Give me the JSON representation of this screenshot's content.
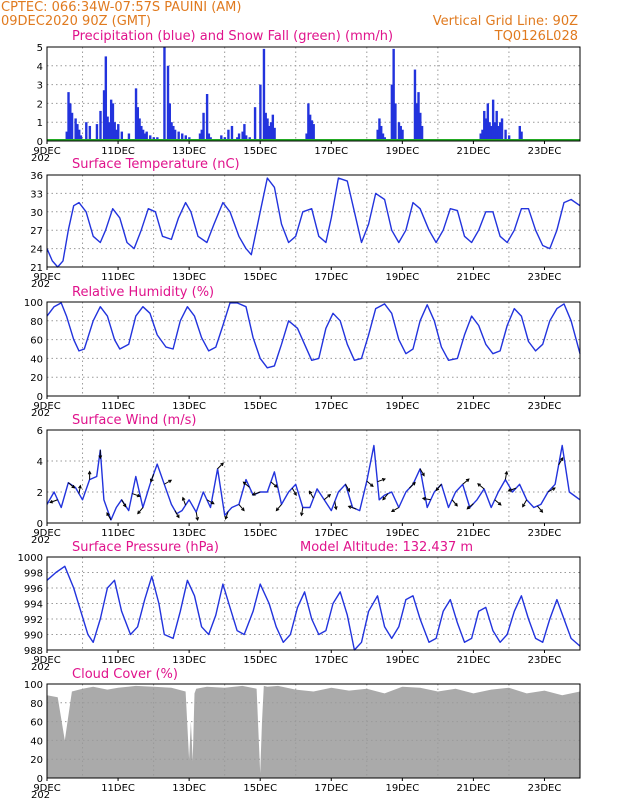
{
  "header": {
    "line1": "CPTEC:   066:34W-07:57S   PAUINI (AM)",
    "line2_left": "09DEC2020 90Z (GMT)",
    "line2_right": "Vertical Grid Line: 90Z",
    "line3_right": "TQ0126L028"
  },
  "x_axis": {
    "labels": [
      "9DEC",
      "11DEC",
      "13DEC",
      "15DEC",
      "17DEC",
      "19DEC",
      "21DEC",
      "23DEC"
    ],
    "year_stub": "202",
    "range_days": [
      0,
      15
    ],
    "grid_days": [
      1,
      3,
      5,
      7,
      9,
      11,
      13
    ],
    "bold_days": [
      2,
      6,
      10
    ]
  },
  "colors": {
    "header": "#e07a1f",
    "title": "#e0138c",
    "line": "#2233dd",
    "precip_bar": "#2233dd",
    "snow_line": "#22aa22",
    "cloud_fill": "#aaaaaa",
    "wind_arrow": "#000000"
  },
  "panels": {
    "precip": {
      "title": "Precipitation (blue) and Snow Fall (green) (mm/h)",
      "ylim": [
        0,
        5
      ],
      "yticks": [
        "0",
        "1",
        "2",
        "3",
        "4",
        "5"
      ]
    },
    "temp": {
      "title": "Surface Temperature (nC)",
      "ylim": [
        21,
        36
      ],
      "yticks": [
        "21",
        "24",
        "27",
        "30",
        "33",
        "36"
      ]
    },
    "rh": {
      "title": "Relative Humidity (%)",
      "ylim": [
        0,
        100
      ],
      "yticks": [
        "0",
        "20",
        "40",
        "60",
        "80",
        "100"
      ]
    },
    "wind": {
      "title": "Surface Wind (m/s)",
      "ylim": [
        0,
        6
      ],
      "yticks": [
        "0",
        "2",
        "4",
        "6"
      ]
    },
    "pressure": {
      "title": "Surface Pressure (hPa)",
      "extra": "Model Altitude: 132.437 m",
      "ylim": [
        988,
        1000
      ],
      "yticks": [
        "988",
        "990",
        "992",
        "994",
        "996",
        "998",
        "1000"
      ]
    },
    "cloud": {
      "title": "Cloud Cover (%)",
      "ylim": [
        0,
        100
      ],
      "yticks": [
        "0",
        "20",
        "40",
        "60",
        "80",
        "100"
      ]
    }
  },
  "chart_data": [
    {
      "type": "bar",
      "title": "Precipitation (blue) and Snow Fall (green) (mm/h)",
      "x_unit": "days since 09DEC2020 00Z",
      "ylim": [
        0,
        5
      ],
      "series": [
        {
          "name": "Precipitation",
          "x": [
            0.55,
            0.6,
            0.65,
            0.7,
            0.8,
            0.85,
            0.9,
            0.95,
            1.1,
            1.2,
            1.4,
            1.5,
            1.6,
            1.65,
            1.7,
            1.75,
            1.8,
            1.85,
            1.9,
            1.95,
            2.0,
            2.1,
            2.3,
            2.5,
            2.55,
            2.6,
            2.65,
            2.7,
            2.75,
            2.8,
            2.9,
            3.0,
            3.1,
            3.3,
            3.4,
            3.45,
            3.5,
            3.55,
            3.6,
            3.7,
            3.8,
            3.9,
            4.0,
            4.3,
            4.35,
            4.4,
            4.5,
            4.55,
            4.6,
            4.9,
            5.0,
            5.1,
            5.2,
            5.3,
            5.35,
            5.4,
            5.5,
            5.55,
            5.6,
            5.7,
            5.85,
            6.0,
            6.1,
            6.15,
            6.2,
            6.25,
            6.3,
            6.35,
            6.4,
            7.3,
            7.35,
            7.4,
            7.45,
            7.5,
            9.3,
            9.35,
            9.4,
            9.45,
            9.5,
            9.7,
            9.75,
            9.8,
            9.9,
            9.95,
            10.0,
            10.35,
            10.4,
            10.45,
            10.5,
            10.55,
            12.2,
            12.25,
            12.3,
            12.35,
            12.4,
            12.45,
            12.5,
            12.55,
            12.6,
            12.65,
            12.7,
            12.75,
            12.8,
            12.9,
            13.0,
            13.3,
            13.35,
            14.2
          ],
          "y": [
            0.5,
            2.6,
            2.0,
            1.5,
            1.2,
            0.9,
            0.6,
            0.3,
            1.0,
            0.8,
            0.9,
            1.6,
            2.7,
            4.5,
            1.3,
            1.0,
            2.2,
            2.0,
            1.0,
            0.6,
            0.9,
            0.5,
            0.4,
            2.8,
            1.8,
            1.2,
            0.8,
            0.6,
            0.4,
            0.5,
            0.3,
            0.2,
            0.2,
            5.0,
            4.0,
            2.0,
            1.0,
            0.8,
            0.6,
            0.5,
            0.4,
            0.3,
            0.2,
            0.4,
            0.6,
            1.5,
            2.5,
            0.4,
            0.2,
            0.3,
            0.2,
            0.6,
            0.8,
            0.1,
            0.2,
            0.4,
            0.5,
            0.9,
            0.3,
            0.2,
            1.8,
            3.0,
            4.9,
            1.5,
            1.2,
            0.8,
            1.0,
            1.4,
            0.7,
            0.4,
            2.0,
            1.4,
            1.1,
            0.9,
            0.6,
            1.2,
            0.8,
            0.4,
            0.2,
            3.0,
            4.9,
            2.0,
            1.0,
            0.8,
            0.6,
            3.8,
            2.0,
            2.6,
            1.5,
            0.8,
            0.4,
            0.6,
            1.6,
            1.2,
            2.0,
            1.0,
            0.8,
            2.2,
            1.0,
            1.6,
            0.8,
            1.0,
            1.2,
            0.6,
            0.3,
            0.8,
            0.5,
            0.1
          ]
        },
        {
          "name": "Snow Fall",
          "x": [
            0,
            15
          ],
          "y": [
            0,
            0
          ]
        }
      ]
    },
    {
      "type": "line",
      "title": "Surface Temperature (nC)",
      "x_unit": "days since 09DEC2020 00Z",
      "ylim": [
        21,
        36
      ],
      "series": [
        {
          "name": "Temperature",
          "x": [
            0,
            0.15,
            0.3,
            0.45,
            0.6,
            0.75,
            0.9,
            1.1,
            1.3,
            1.5,
            1.65,
            1.85,
            2.05,
            2.25,
            2.45,
            2.65,
            2.85,
            3.05,
            3.25,
            3.5,
            3.7,
            3.9,
            4.05,
            4.25,
            4.5,
            4.7,
            4.95,
            5.15,
            5.4,
            5.6,
            5.75,
            6.0,
            6.2,
            6.4,
            6.6,
            6.8,
            7.0,
            7.2,
            7.45,
            7.65,
            7.85,
            8.0,
            8.2,
            8.45,
            8.65,
            8.85,
            9.05,
            9.25,
            9.5,
            9.7,
            9.9,
            10.1,
            10.3,
            10.5,
            10.75,
            10.95,
            11.15,
            11.35,
            11.55,
            11.75,
            11.95,
            12.15,
            12.35,
            12.55,
            12.75,
            12.95,
            13.15,
            13.35,
            13.55,
            13.75,
            13.95,
            14.15,
            14.35,
            14.55,
            14.75,
            15.0
          ],
          "y": [
            24,
            22,
            21,
            22,
            27,
            31,
            31.5,
            30,
            26,
            25,
            27,
            30.5,
            29,
            25,
            24,
            27,
            30.5,
            30,
            26,
            25.5,
            29,
            31.5,
            30,
            26,
            25,
            28,
            31.5,
            30,
            26,
            24,
            23,
            30,
            35.5,
            34,
            28,
            25,
            26,
            30,
            30.5,
            26,
            25,
            29,
            35.5,
            35,
            30,
            25,
            28,
            33,
            32,
            27,
            25,
            27,
            31.5,
            30.5,
            27,
            25,
            27,
            30.5,
            30.2,
            26,
            25,
            27,
            30,
            30,
            26,
            25,
            27,
            30.5,
            30.5,
            27,
            24.5,
            24,
            27,
            31.5,
            32,
            31
          ]
        }
      ]
    },
    {
      "type": "line",
      "title": "Relative Humidity (%)",
      "x_unit": "days since 09DEC2020 00Z",
      "ylim": [
        0,
        100
      ],
      "series": [
        {
          "name": "Relative Humidity",
          "x": [
            0,
            0.2,
            0.4,
            0.55,
            0.75,
            0.9,
            1.05,
            1.3,
            1.5,
            1.7,
            1.9,
            2.05,
            2.3,
            2.5,
            2.7,
            2.9,
            3.1,
            3.35,
            3.55,
            3.75,
            3.95,
            4.15,
            4.35,
            4.55,
            4.75,
            4.95,
            5.15,
            5.35,
            5.6,
            5.8,
            6.0,
            6.2,
            6.4,
            6.6,
            6.8,
            7.05,
            7.25,
            7.45,
            7.65,
            7.85,
            8.05,
            8.25,
            8.45,
            8.65,
            8.85,
            9.05,
            9.25,
            9.5,
            9.7,
            9.9,
            10.1,
            10.3,
            10.5,
            10.7,
            10.9,
            11.1,
            11.3,
            11.55,
            11.75,
            11.95,
            12.15,
            12.35,
            12.55,
            12.75,
            12.95,
            13.15,
            13.35,
            13.55,
            13.75,
            13.95,
            14.15,
            14.35,
            14.55,
            14.75,
            15.0
          ],
          "y": [
            85,
            95,
            99,
            85,
            60,
            48,
            50,
            80,
            95,
            85,
            60,
            50,
            55,
            85,
            95,
            88,
            65,
            52,
            50,
            80,
            95,
            85,
            62,
            48,
            52,
            75,
            99,
            99,
            95,
            62,
            40,
            30,
            32,
            55,
            80,
            72,
            55,
            38,
            40,
            72,
            88,
            80,
            55,
            38,
            40,
            65,
            93,
            98,
            88,
            60,
            45,
            50,
            80,
            97,
            80,
            52,
            38,
            40,
            65,
            85,
            75,
            55,
            45,
            48,
            75,
            93,
            85,
            58,
            48,
            55,
            80,
            93,
            98,
            80,
            45
          ]
        }
      ]
    },
    {
      "type": "line",
      "title": "Surface Wind (m/s)",
      "x_unit": "days since 09DEC2020 00Z",
      "ylim": [
        0,
        6
      ],
      "series": [
        {
          "name": "Wind Speed",
          "x": [
            0,
            0.2,
            0.4,
            0.6,
            0.8,
            1.0,
            1.2,
            1.4,
            1.5,
            1.6,
            1.8,
            1.95,
            2.1,
            2.3,
            2.5,
            2.7,
            2.9,
            3.1,
            3.3,
            3.5,
            3.65,
            3.8,
            4.0,
            4.2,
            4.4,
            4.6,
            4.8,
            5.0,
            5.2,
            5.4,
            5.6,
            5.8,
            6.0,
            6.2,
            6.4,
            6.6,
            6.8,
            7.0,
            7.2,
            7.4,
            7.6,
            7.8,
            8.0,
            8.2,
            8.4,
            8.6,
            8.8,
            9.0,
            9.2,
            9.35,
            9.5,
            9.7,
            9.9,
            10.1,
            10.3,
            10.5,
            10.7,
            10.9,
            11.1,
            11.3,
            11.5,
            11.7,
            11.9,
            12.1,
            12.3,
            12.5,
            12.7,
            12.9,
            13.1,
            13.3,
            13.5,
            13.7,
            13.9,
            14.1,
            14.3,
            14.5,
            14.7,
            15.0
          ],
          "y": [
            1.2,
            2.0,
            1.0,
            2.6,
            2.3,
            1.5,
            2.8,
            3.0,
            4.7,
            1.5,
            0.2,
            1.0,
            1.5,
            0.8,
            3.0,
            1.0,
            2.5,
            3.8,
            2.5,
            1.2,
            0.6,
            0.8,
            1.5,
            0.7,
            2.0,
            1.0,
            3.5,
            0.5,
            1.0,
            1.2,
            2.8,
            1.8,
            2.0,
            2.0,
            3.3,
            1.2,
            2.0,
            2.5,
            1.0,
            1.0,
            2.2,
            1.5,
            0.8,
            2.0,
            2.5,
            1.0,
            0.8,
            2.7,
            5.0,
            1.5,
            1.8,
            2.0,
            1.0,
            2.0,
            2.5,
            3.5,
            1.0,
            2.0,
            2.5,
            1.0,
            2.0,
            2.5,
            1.0,
            1.5,
            2.2,
            1.0,
            2.0,
            2.8,
            2.0,
            2.5,
            1.5,
            1.0,
            1.2,
            2.0,
            2.5,
            5.0,
            2.0,
            1.5
          ]
        }
      ],
      "vectors_note": "wind direction arrows"
    },
    {
      "type": "line",
      "title": "Surface Pressure (hPa)",
      "x_unit": "days since 09DEC2020 00Z",
      "ylim": [
        988,
        1000
      ],
      "series": [
        {
          "name": "Pressure",
          "x": [
            0,
            0.25,
            0.5,
            0.75,
            0.95,
            1.15,
            1.3,
            1.5,
            1.7,
            1.9,
            2.1,
            2.35,
            2.55,
            2.75,
            2.95,
            3.15,
            3.3,
            3.55,
            3.75,
            3.95,
            4.15,
            4.35,
            4.55,
            4.75,
            4.95,
            5.15,
            5.35,
            5.55,
            5.8,
            6.0,
            6.25,
            6.45,
            6.65,
            6.85,
            7.05,
            7.25,
            7.45,
            7.65,
            7.85,
            8.05,
            8.25,
            8.45,
            8.65,
            8.85,
            9.05,
            9.3,
            9.5,
            9.7,
            9.9,
            10.1,
            10.3,
            10.5,
            10.75,
            10.95,
            11.15,
            11.35,
            11.55,
            11.75,
            11.95,
            12.15,
            12.35,
            12.55,
            12.75,
            12.95,
            13.15,
            13.35,
            13.55,
            13.75,
            13.95,
            14.15,
            14.35,
            14.55,
            14.75,
            15.0
          ],
          "y": [
            997,
            998,
            998.8,
            996,
            993,
            990,
            989,
            992,
            996,
            997,
            993,
            990,
            991,
            994.5,
            997.5,
            994,
            990,
            989.5,
            993,
            997,
            995,
            991,
            990,
            992.5,
            996.5,
            993.5,
            990.5,
            990,
            993,
            996.5,
            994,
            991,
            989,
            990,
            993.5,
            995.5,
            992,
            990,
            990.5,
            994,
            995.5,
            992.5,
            988,
            989,
            993,
            995,
            991,
            989.5,
            991,
            994.5,
            995,
            992,
            989,
            989.5,
            993,
            994.5,
            991.5,
            989,
            989.5,
            993,
            993.5,
            990.5,
            989,
            990,
            993,
            995,
            992,
            989.5,
            989,
            992,
            994.5,
            992,
            989.5,
            988.5
          ]
        }
      ]
    },
    {
      "type": "area",
      "title": "Cloud Cover (%)",
      "x_unit": "days since 09DEC2020 00Z",
      "ylim": [
        0,
        100
      ],
      "series": [
        {
          "name": "Cloud Cover",
          "x": [
            0,
            0.3,
            0.5,
            0.7,
            1.0,
            1.3,
            1.7,
            2.0,
            2.5,
            3.0,
            3.5,
            3.9,
            4.0,
            4.05,
            4.1,
            4.15,
            4.2,
            4.5,
            5.0,
            5.5,
            5.9,
            6.0,
            6.05,
            6.1,
            6.2,
            6.5,
            7.0,
            7.5,
            8.0,
            8.5,
            9.0,
            9.5,
            10.0,
            10.5,
            11.0,
            11.5,
            12.0,
            12.5,
            13.0,
            13.5,
            14.0,
            14.5,
            15.0
          ],
          "y": [
            88,
            86,
            40,
            92,
            95,
            97,
            94,
            96,
            98,
            97,
            96,
            92,
            20,
            60,
            18,
            90,
            95,
            97,
            96,
            98,
            95,
            5,
            60,
            98,
            97,
            98,
            94,
            92,
            96,
            93,
            95,
            90,
            97,
            96,
            92,
            95,
            90,
            94,
            96,
            90,
            93,
            88,
            92
          ]
        }
      ]
    }
  ]
}
